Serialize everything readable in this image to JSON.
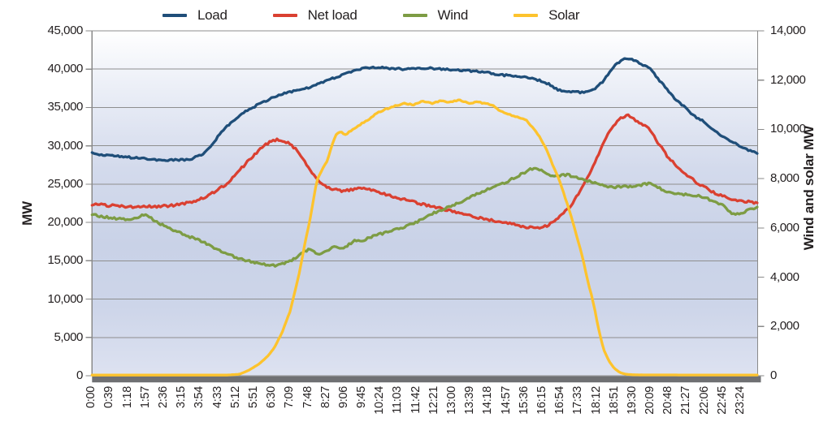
{
  "legend": [
    {
      "label": "Load",
      "slug": "load",
      "color": "#1f4e79"
    },
    {
      "label": "Net load",
      "slug": "net-load",
      "color": "#da4031"
    },
    {
      "label": "Wind",
      "slug": "wind",
      "color": "#7d9c44"
    },
    {
      "label": "Solar",
      "slug": "solar",
      "color": "#fdc32d"
    }
  ],
  "y_left": {
    "title": "MW",
    "min": 0,
    "max": 45000,
    "step": 5000,
    "ticks": [
      "45,000",
      "40,000",
      "35,000",
      "30,000",
      "25,000",
      "20,000",
      "15,000",
      "10,000",
      "5,000",
      "0"
    ]
  },
  "y_right": {
    "title": "Wind and solar MW",
    "min": 0,
    "max": 14000,
    "step": 2000,
    "ticks": [
      "14,000",
      "12,000",
      "10,000",
      "8,000",
      "6,000",
      "4,000",
      "2,000",
      "0"
    ]
  },
  "x_axis": {
    "tick_interval_min": 39,
    "labels": [
      "0:00",
      "0:39",
      "1:18",
      "1:57",
      "2:36",
      "3:15",
      "3:54",
      "4:33",
      "5:12",
      "5:51",
      "6:30",
      "7:09",
      "7:48",
      "8:27",
      "9:06",
      "9:45",
      "10:24",
      "11:03",
      "11:42",
      "12:21",
      "13:00",
      "13:39",
      "14:18",
      "14:57",
      "15:36",
      "16:15",
      "16:54",
      "17:33",
      "18:12",
      "18:51",
      "19:30",
      "20:09",
      "20:48",
      "21:27",
      "22:06",
      "22:45",
      "23:24"
    ]
  },
  "style": {
    "gridline_color": "#8e8e8e",
    "axis_border_color": "#8a8a8a",
    "base_band_color": "#6f7073",
    "text_color": "#231f20",
    "plot_bg_gradient": [
      "#ffffff",
      "#eef1f8",
      "#c9d2e7",
      "#dde2f1"
    ]
  },
  "chart_data": {
    "type": "line",
    "x_unit": "minutes_since_midnight",
    "x_range": [
      0,
      1440
    ],
    "grid": "horizontal-only",
    "legend_position": "top",
    "axes": {
      "left": {
        "label": "MW",
        "range": [
          0,
          45000
        ]
      },
      "right": {
        "label": "Wind and solar MW",
        "range": [
          0,
          14000
        ]
      }
    },
    "series": [
      {
        "name": "Load",
        "axis": "left",
        "color": "#1f4e79",
        "points": [
          [
            0,
            29000
          ],
          [
            30,
            28800
          ],
          [
            60,
            28600
          ],
          [
            90,
            28450
          ],
          [
            150,
            28150
          ],
          [
            210,
            28200
          ],
          [
            240,
            28900
          ],
          [
            255,
            29800
          ],
          [
            270,
            31000
          ],
          [
            285,
            32200
          ],
          [
            305,
            33200
          ],
          [
            330,
            34400
          ],
          [
            360,
            35400
          ],
          [
            390,
            36300
          ],
          [
            420,
            36900
          ],
          [
            450,
            37300
          ],
          [
            480,
            37800
          ],
          [
            510,
            38600
          ],
          [
            540,
            39200
          ],
          [
            565,
            39800
          ],
          [
            590,
            40150
          ],
          [
            620,
            40200
          ],
          [
            650,
            40100
          ],
          [
            680,
            40000
          ],
          [
            705,
            40100
          ],
          [
            725,
            40150
          ],
          [
            750,
            40050
          ],
          [
            780,
            39950
          ],
          [
            810,
            39800
          ],
          [
            843,
            39650
          ],
          [
            870,
            39400
          ],
          [
            900,
            39150
          ],
          [
            938,
            39000
          ],
          [
            960,
            38700
          ],
          [
            990,
            38000
          ],
          [
            1005,
            37400
          ],
          [
            1015,
            37150
          ],
          [
            1040,
            37050
          ],
          [
            1067,
            36950
          ],
          [
            1080,
            37200
          ],
          [
            1095,
            37800
          ],
          [
            1105,
            38400
          ],
          [
            1115,
            39200
          ],
          [
            1125,
            40000
          ],
          [
            1135,
            40700
          ],
          [
            1146,
            41200
          ],
          [
            1155,
            41400
          ],
          [
            1165,
            41400
          ],
          [
            1175,
            41100
          ],
          [
            1190,
            40500
          ],
          [
            1201,
            40350
          ],
          [
            1210,
            39900
          ],
          [
            1220,
            39100
          ],
          [
            1235,
            38000
          ],
          [
            1250,
            36900
          ],
          [
            1265,
            35900
          ],
          [
            1279,
            35250
          ],
          [
            1295,
            34300
          ],
          [
            1310,
            33600
          ],
          [
            1325,
            33150
          ],
          [
            1340,
            32300
          ],
          [
            1355,
            31600
          ],
          [
            1370,
            31000
          ],
          [
            1383,
            30600
          ],
          [
            1397,
            30100
          ],
          [
            1410,
            29700
          ],
          [
            1425,
            29300
          ],
          [
            1439,
            29000
          ]
        ]
      },
      {
        "name": "Net load",
        "axis": "left",
        "color": "#da4031",
        "points": [
          [
            0,
            22400
          ],
          [
            30,
            22250
          ],
          [
            60,
            22100
          ],
          [
            90,
            22000
          ],
          [
            120,
            22050
          ],
          [
            150,
            22100
          ],
          [
            180,
            22250
          ],
          [
            210,
            22600
          ],
          [
            240,
            23200
          ],
          [
            265,
            24000
          ],
          [
            290,
            25000
          ],
          [
            310,
            26200
          ],
          [
            330,
            27500
          ],
          [
            350,
            28800
          ],
          [
            370,
            29900
          ],
          [
            385,
            30500
          ],
          [
            400,
            30800
          ],
          [
            415,
            30700
          ],
          [
            430,
            30200
          ],
          [
            445,
            29300
          ],
          [
            460,
            28000
          ],
          [
            475,
            26500
          ],
          [
            490,
            25400
          ],
          [
            505,
            24700
          ],
          [
            520,
            24350
          ],
          [
            540,
            24150
          ],
          [
            560,
            24250
          ],
          [
            580,
            24450
          ],
          [
            600,
            24300
          ],
          [
            625,
            23900
          ],
          [
            650,
            23400
          ],
          [
            675,
            23000
          ],
          [
            700,
            22600
          ],
          [
            725,
            22250
          ],
          [
            750,
            21900
          ],
          [
            775,
            21550
          ],
          [
            800,
            21200
          ],
          [
            825,
            20800
          ],
          [
            850,
            20450
          ],
          [
            875,
            20150
          ],
          [
            900,
            19900
          ],
          [
            925,
            19550
          ],
          [
            945,
            19350
          ],
          [
            961,
            19250
          ],
          [
            975,
            19350
          ],
          [
            990,
            19800
          ],
          [
            1005,
            20400
          ],
          [
            1020,
            21200
          ],
          [
            1038,
            22300
          ],
          [
            1052,
            23700
          ],
          [
            1065,
            25100
          ],
          [
            1078,
            26600
          ],
          [
            1090,
            28100
          ],
          [
            1102,
            29900
          ],
          [
            1115,
            31400
          ],
          [
            1128,
            32600
          ],
          [
            1140,
            33400
          ],
          [
            1150,
            33850
          ],
          [
            1160,
            33950
          ],
          [
            1170,
            33600
          ],
          [
            1182,
            33000
          ],
          [
            1195,
            32700
          ],
          [
            1202,
            32500
          ],
          [
            1215,
            31300
          ],
          [
            1230,
            29900
          ],
          [
            1245,
            28600
          ],
          [
            1265,
            27400
          ],
          [
            1285,
            26300
          ],
          [
            1305,
            25300
          ],
          [
            1325,
            24600
          ],
          [
            1345,
            23900
          ],
          [
            1365,
            23400
          ],
          [
            1385,
            23000
          ],
          [
            1405,
            22800
          ],
          [
            1425,
            22650
          ],
          [
            1439,
            22550
          ]
        ]
      },
      {
        "name": "Wind",
        "axis": "right",
        "color": "#7d9c44",
        "points": [
          [
            0,
            6550
          ],
          [
            25,
            6450
          ],
          [
            50,
            6400
          ],
          [
            75,
            6320
          ],
          [
            100,
            6400
          ],
          [
            115,
            6580
          ],
          [
            130,
            6350
          ],
          [
            150,
            6150
          ],
          [
            170,
            5950
          ],
          [
            190,
            5800
          ],
          [
            210,
            5650
          ],
          [
            230,
            5500
          ],
          [
            255,
            5300
          ],
          [
            280,
            5050
          ],
          [
            305,
            4850
          ],
          [
            330,
            4700
          ],
          [
            355,
            4580
          ],
          [
            380,
            4490
          ],
          [
            400,
            4480
          ],
          [
            415,
            4560
          ],
          [
            430,
            4660
          ],
          [
            445,
            4830
          ],
          [
            458,
            5020
          ],
          [
            470,
            5120
          ],
          [
            482,
            5020
          ],
          [
            495,
            4950
          ],
          [
            510,
            5080
          ],
          [
            525,
            5230
          ],
          [
            540,
            5180
          ],
          [
            555,
            5320
          ],
          [
            570,
            5520
          ],
          [
            585,
            5480
          ],
          [
            600,
            5620
          ],
          [
            615,
            5720
          ],
          [
            640,
            5830
          ],
          [
            665,
            5980
          ],
          [
            690,
            6150
          ],
          [
            715,
            6350
          ],
          [
            740,
            6600
          ],
          [
            765,
            6800
          ],
          [
            790,
            7000
          ],
          [
            815,
            7200
          ],
          [
            840,
            7450
          ],
          [
            865,
            7650
          ],
          [
            890,
            7800
          ],
          [
            910,
            8000
          ],
          [
            930,
            8200
          ],
          [
            950,
            8400
          ],
          [
            962,
            8460
          ],
          [
            975,
            8300
          ],
          [
            988,
            8150
          ],
          [
            1000,
            8100
          ],
          [
            1015,
            8130
          ],
          [
            1030,
            8150
          ],
          [
            1045,
            8060
          ],
          [
            1060,
            7980
          ],
          [
            1075,
            7900
          ],
          [
            1090,
            7820
          ],
          [
            1105,
            7740
          ],
          [
            1120,
            7680
          ],
          [
            1135,
            7650
          ],
          [
            1150,
            7670
          ],
          [
            1165,
            7690
          ],
          [
            1180,
            7720
          ],
          [
            1195,
            7770
          ],
          [
            1207,
            7820
          ],
          [
            1220,
            7680
          ],
          [
            1235,
            7550
          ],
          [
            1250,
            7450
          ],
          [
            1270,
            7380
          ],
          [
            1290,
            7340
          ],
          [
            1310,
            7310
          ],
          [
            1330,
            7200
          ],
          [
            1350,
            7050
          ],
          [
            1365,
            6900
          ],
          [
            1380,
            6650
          ],
          [
            1393,
            6530
          ],
          [
            1405,
            6600
          ],
          [
            1420,
            6720
          ],
          [
            1439,
            6850
          ]
        ]
      },
      {
        "name": "Solar",
        "axis": "right",
        "color": "#fdc32d",
        "points": [
          [
            0,
            25
          ],
          [
            290,
            25
          ],
          [
            319,
            60
          ],
          [
            340,
            230
          ],
          [
            363,
            500
          ],
          [
            380,
            800
          ],
          [
            393,
            1100
          ],
          [
            411,
            1750
          ],
          [
            428,
            2600
          ],
          [
            439,
            3400
          ],
          [
            451,
            4400
          ],
          [
            460,
            5300
          ],
          [
            472,
            6400
          ],
          [
            486,
            7900
          ],
          [
            497,
            8350
          ],
          [
            508,
            8700
          ],
          [
            518,
            9300
          ],
          [
            528,
            9800
          ],
          [
            538,
            9920
          ],
          [
            548,
            9780
          ],
          [
            558,
            9920
          ],
          [
            570,
            10080
          ],
          [
            585,
            10250
          ],
          [
            600,
            10420
          ],
          [
            615,
            10640
          ],
          [
            635,
            10820
          ],
          [
            657,
            10960
          ],
          [
            675,
            11060
          ],
          [
            695,
            11000
          ],
          [
            715,
            11140
          ],
          [
            735,
            11060
          ],
          [
            755,
            11160
          ],
          [
            775,
            11100
          ],
          [
            795,
            11190
          ],
          [
            815,
            11060
          ],
          [
            835,
            11110
          ],
          [
            855,
            11040
          ],
          [
            868,
            10960
          ],
          [
            885,
            10720
          ],
          [
            908,
            10560
          ],
          [
            925,
            10470
          ],
          [
            938,
            10390
          ],
          [
            955,
            10050
          ],
          [
            970,
            9650
          ],
          [
            985,
            9100
          ],
          [
            1000,
            8400
          ],
          [
            1012,
            7900
          ],
          [
            1024,
            7200
          ],
          [
            1036,
            6500
          ],
          [
            1048,
            5700
          ],
          [
            1060,
            4900
          ],
          [
            1072,
            3900
          ],
          [
            1084,
            3000
          ],
          [
            1096,
            1900
          ],
          [
            1106,
            1100
          ],
          [
            1118,
            600
          ],
          [
            1130,
            300
          ],
          [
            1142,
            130
          ],
          [
            1155,
            60
          ],
          [
            1175,
            35
          ],
          [
            1300,
            30
          ],
          [
            1439,
            30
          ]
        ]
      }
    ]
  }
}
